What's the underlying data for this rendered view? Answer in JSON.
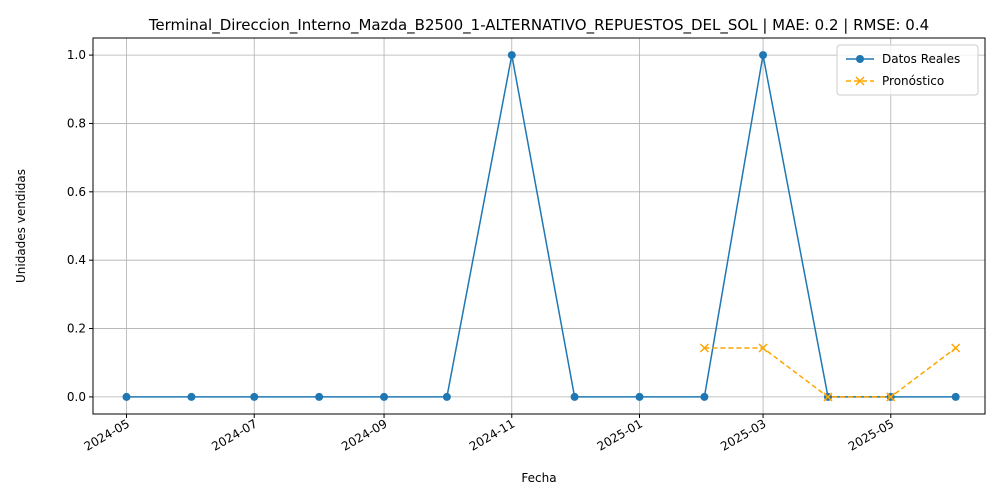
{
  "chart_data": {
    "type": "line",
    "title": "Terminal_Direccion_Interno_Mazda_B2500_1-ALTERNATIVO_REPUESTOS_DEL_SOL | MAE: 0.2 | RMSE: 0.4",
    "xlabel": "Fecha",
    "ylabel": "Unidades vendidas",
    "xlim": [
      "2024-04-15",
      "2025-06-15"
    ],
    "ylim": [
      -0.05,
      1.05
    ],
    "grid": true,
    "legend_position": "top-right",
    "x_ticks": [
      "2024-05",
      "2024-07",
      "2024-09",
      "2024-11",
      "2025-01",
      "2025-03",
      "2025-05"
    ],
    "y_ticks": [
      "0.0",
      "0.2",
      "0.4",
      "0.6",
      "0.8",
      "1.0"
    ],
    "series": [
      {
        "name": "Datos Reales",
        "color": "#1f77b4",
        "style": "solid",
        "marker": "circle",
        "x": [
          "2024-05-01",
          "2024-06-01",
          "2024-07-01",
          "2024-08-01",
          "2024-09-01",
          "2024-10-01",
          "2024-11-01",
          "2024-12-01",
          "2025-01-01",
          "2025-02-01",
          "2025-03-01",
          "2025-04-01",
          "2025-05-01",
          "2025-06-01"
        ],
        "values": [
          0,
          0,
          0,
          0,
          0,
          0,
          1,
          0,
          0,
          0,
          1,
          0,
          0,
          0
        ]
      },
      {
        "name": "Pronóstico",
        "color": "#ffa500",
        "style": "dashed",
        "marker": "x",
        "x": [
          "2025-02-01",
          "2025-03-01",
          "2025-04-01",
          "2025-05-01",
          "2025-06-01"
        ],
        "values": [
          0.143,
          0.143,
          0,
          0,
          0.143
        ]
      }
    ]
  }
}
